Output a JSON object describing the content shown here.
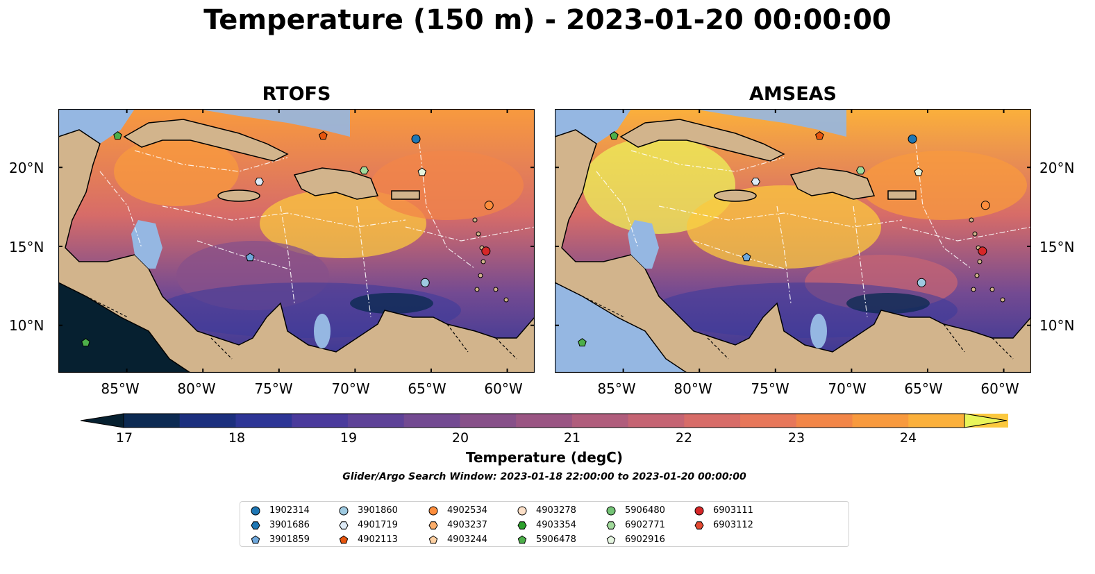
{
  "title": "Temperature (150 m) - 2023-01-20 00:00:00",
  "panels": [
    {
      "title": "RTOFS"
    },
    {
      "title": "AMSEAS"
    }
  ],
  "lat_labels": [
    "20°N",
    "15°N",
    "10°N"
  ],
  "lon_labels": [
    "85°W",
    "80°W",
    "75°W",
    "70°W",
    "65°W",
    "60°W"
  ],
  "colorbar": {
    "label": "Temperature (degC)",
    "ticks": [
      "17",
      "18",
      "19",
      "20",
      "21",
      "22",
      "23",
      "24"
    ],
    "colormap": "thermal",
    "extend": "both",
    "range": [
      17,
      24.5
    ],
    "colors": [
      "#062030",
      "#0c2a52",
      "#1b2f7e",
      "#2d3596",
      "#4a3a9c",
      "#5e4298",
      "#734a92",
      "#875089",
      "#9a5583",
      "#b05d7c",
      "#c56473",
      "#d76c68",
      "#e7775a",
      "#f28648",
      "#f89a3e",
      "#fbb03b",
      "#fbc83e",
      "#f3e44a",
      "#e9f55a"
    ]
  },
  "search_window": "Glider/Argo Search Window: 2023-01-18 22:00:00 to 2023-01-20 00:00:00",
  "map_colors": {
    "land": "#d2b48c",
    "ocean_shelf": "#95b7e2"
  },
  "legend": [
    {
      "id": "1902314",
      "marker": "circle",
      "color": "#1f77b4"
    },
    {
      "id": "3901686",
      "marker": "hexagon",
      "color": "#1f77b4"
    },
    {
      "id": "3901859",
      "marker": "pentagon",
      "color": "#6fa8dc"
    },
    {
      "id": "3901860",
      "marker": "circle",
      "color": "#9ecae1"
    },
    {
      "id": "4901719",
      "marker": "hexagon",
      "color": "#deebf7"
    },
    {
      "id": "4902113",
      "marker": "pentagon",
      "color": "#e6550d"
    },
    {
      "id": "4902534",
      "marker": "circle",
      "color": "#fd8d3c"
    },
    {
      "id": "4903237",
      "marker": "hexagon",
      "color": "#fdae6b"
    },
    {
      "id": "4903244",
      "marker": "pentagon",
      "color": "#fdd0a2"
    },
    {
      "id": "4903278",
      "marker": "circle",
      "color": "#fde0c8"
    },
    {
      "id": "4903354",
      "marker": "hexagon",
      "color": "#2ca02c"
    },
    {
      "id": "5906478",
      "marker": "pentagon",
      "color": "#4daf4a"
    },
    {
      "id": "5906480",
      "marker": "circle",
      "color": "#74c476"
    },
    {
      "id": "6902771",
      "marker": "hexagon",
      "color": "#a1d99b"
    },
    {
      "id": "6902916",
      "marker": "pentagon",
      "color": "#e5f5e0"
    },
    {
      "id": "6903111",
      "marker": "circle",
      "color": "#d62728"
    },
    {
      "id": "6903112",
      "marker": "hexagon",
      "color": "#e34a33"
    }
  ],
  "observations": [
    {
      "marker": "pentagon",
      "color": "#4daf4a",
      "lon": -85.6,
      "lat": 22.0
    },
    {
      "marker": "pentagon",
      "color": "#e6550d",
      "lon": -72.1,
      "lat": 22.0
    },
    {
      "marker": "circle",
      "color": "#1f77b4",
      "lon": -66.0,
      "lat": 21.8
    },
    {
      "marker": "hexagon",
      "color": "#a1d99b",
      "lon": -69.4,
      "lat": 19.8
    },
    {
      "marker": "pentagon",
      "color": "#e5f5e0",
      "lon": -65.6,
      "lat": 19.7
    },
    {
      "marker": "hexagon",
      "color": "#deebf7",
      "lon": -76.3,
      "lat": 19.1
    },
    {
      "marker": "circle",
      "color": "#fd8d3c",
      "lon": -61.2,
      "lat": 17.6
    },
    {
      "marker": "circle",
      "color": "#d62728",
      "lon": -61.4,
      "lat": 14.7
    },
    {
      "marker": "pentagon",
      "color": "#6fa8dc",
      "lon": -76.9,
      "lat": 14.3
    },
    {
      "marker": "circle",
      "color": "#9ecae1",
      "lon": -65.4,
      "lat": 12.7
    },
    {
      "marker": "pentagon",
      "color": "#4daf4a",
      "lon": -87.7,
      "lat": 8.9
    }
  ]
}
